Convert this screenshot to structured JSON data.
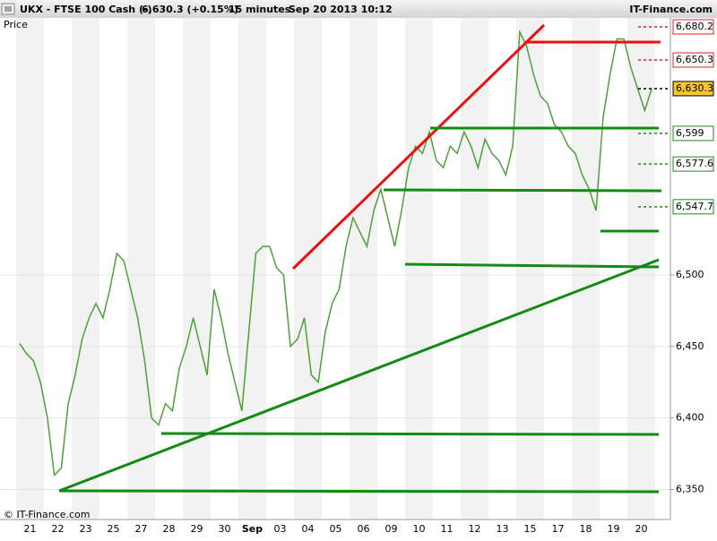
{
  "chart_data": {
    "type": "line",
    "header": {
      "symbol": "UKX - FTSE 100 Cash (-)",
      "quote": "6,630.3 (+0.15%)",
      "interval": "15 minutes",
      "timestamp": "Sep 20 2013 10:12",
      "brand": "IT-Finance.com"
    },
    "y_label": "Price",
    "copyright": "© IT-Finance.com",
    "categories": [
      null,
      "21",
      null,
      null,
      null,
      "22",
      null,
      null,
      null,
      "23",
      null,
      null,
      null,
      "25",
      null,
      null,
      null,
      "27",
      null,
      null,
      null,
      "28",
      null,
      null,
      null,
      "29",
      null,
      null,
      null,
      "30",
      null,
      null,
      null,
      "Sep",
      null,
      null,
      null,
      "03",
      null,
      null,
      null,
      "04",
      null,
      null,
      null,
      "05",
      null,
      null,
      null,
      "06",
      null,
      null,
      null,
      "09",
      null,
      null,
      null,
      "10",
      null,
      null,
      null,
      "11",
      null,
      null,
      null,
      "12",
      null,
      null,
      null,
      "13",
      null,
      null,
      null,
      "15",
      null,
      null,
      null,
      "17",
      null,
      null,
      null,
      "18",
      null,
      null,
      null,
      "19",
      null,
      null,
      null,
      "20",
      null,
      null
    ],
    "series": [
      {
        "color": "#4f9e3c",
        "values": [
          6452,
          6445,
          6440,
          6425,
          6400,
          6360,
          6365,
          6410,
          6430,
          6455,
          6470,
          6480,
          6470,
          6490,
          6515,
          6510,
          6490,
          6470,
          6440,
          6400,
          6395,
          6410,
          6405,
          6435,
          6450,
          6470,
          6450,
          6430,
          6490,
          6470,
          6445,
          6425,
          6405,
          6460,
          6515,
          6520,
          6520,
          6505,
          6500,
          6450,
          6455,
          6470,
          6430,
          6425,
          6460,
          6480,
          6490,
          6520,
          6540,
          6530,
          6520,
          6545,
          6560,
          6540,
          6520,
          6545,
          6575,
          6590,
          6585,
          6600,
          6580,
          6575,
          6590,
          6585,
          6600,
          6590,
          6575,
          6595,
          6585,
          6580,
          6570,
          6590,
          6670,
          6660,
          6640,
          6625,
          6620,
          6605,
          6600,
          6590,
          6585,
          6570,
          6560,
          6545,
          6610,
          6640,
          6665,
          6665,
          6645,
          6630,
          6615,
          6630.3
        ]
      }
    ],
    "ylim": [
      6329,
      6681
    ],
    "yticks": [
      {
        "value": 6350,
        "label": "6,350"
      },
      {
        "value": 6400,
        "label": "6,400"
      },
      {
        "value": 6450,
        "label": "6,450"
      },
      {
        "value": 6500,
        "label": "6,500"
      }
    ],
    "grid": true,
    "levels": [
      {
        "value": 6680.2,
        "label": "6,680.2",
        "color": "#e02020"
      },
      {
        "value": 6650.3,
        "label": "6,650.3",
        "color": "#e02020"
      },
      {
        "value": 6630.3,
        "label": "6,630.3",
        "color": "#000000"
      },
      {
        "value": 6599,
        "label": "6,599",
        "color": "#1a8a1a"
      },
      {
        "value": 6577.6,
        "label": "6,577.6",
        "color": "#1a8a1a"
      },
      {
        "value": 6547.7,
        "label": "6,547.7",
        "color": "#1a8a1a"
      }
    ]
  }
}
